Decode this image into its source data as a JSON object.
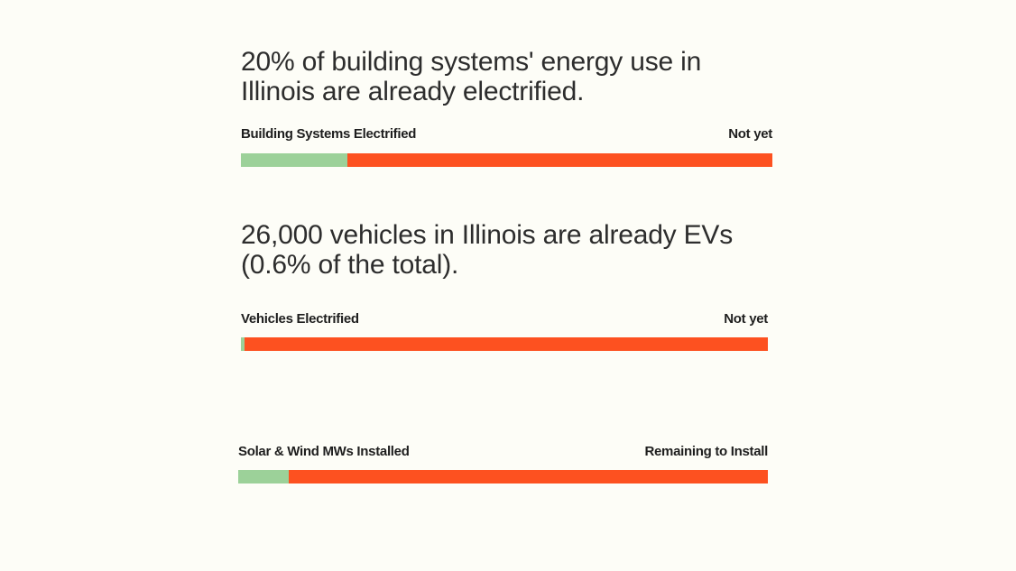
{
  "chart_data": [
    {
      "type": "bar",
      "title": "20% of building systems' energy use in Illinois are already electrified.",
      "categories": [
        "Building Systems Electrified",
        "Not yet"
      ],
      "values": [
        20,
        80
      ],
      "unit": "%",
      "colors": [
        "#9cd199",
        "#fd5120"
      ]
    },
    {
      "type": "bar",
      "title": "26,000 vehicles in Illinois are already EVs (0.6% of the total).",
      "categories": [
        "Vehicles Electrified",
        "Not yet"
      ],
      "values": [
        0.6,
        99.4
      ],
      "unit": "%",
      "colors": [
        "#9cd199",
        "#fd5120"
      ]
    },
    {
      "type": "bar",
      "title": "",
      "categories": [
        "Solar & Wind MWs Installed",
        "Remaining to Install"
      ],
      "values": [
        9.5,
        90.5
      ],
      "unit": "%",
      "colors": [
        "#9cd199",
        "#fd5120"
      ]
    }
  ]
}
